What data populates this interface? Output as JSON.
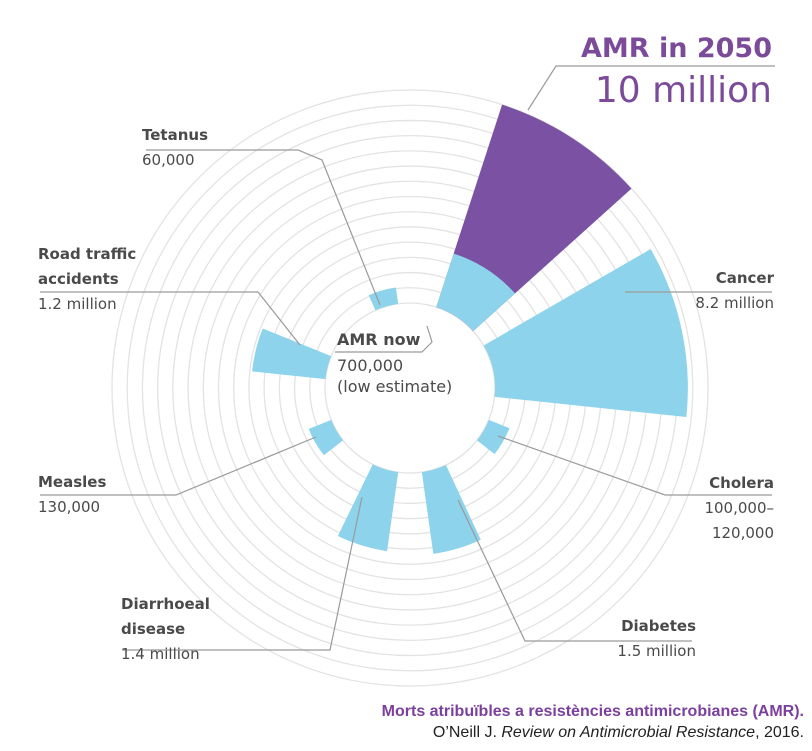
{
  "chart_data": {
    "type": "polar-bar",
    "title": "",
    "ring_count": 14,
    "highlight": {
      "label": "AMR in 2050",
      "value": "10 million",
      "value_num": 10000000,
      "color": "#7b52a3"
    },
    "current": {
      "label": "AMR now",
      "value": "700,000\n(low estimate)",
      "value_num": 700000
    },
    "categories": [
      {
        "name": "Tetanus",
        "value": "60,000",
        "value_num": 60000,
        "color": "#8dd3ec"
      },
      {
        "name": "Road traffic\naccidents",
        "value": "1.2 million",
        "value_num": 1200000,
        "color": "#8dd3ec"
      },
      {
        "name": "Measles",
        "value": "130,000",
        "value_num": 130000,
        "color": "#8dd3ec"
      },
      {
        "name": "Diarrhoeal\ndisease",
        "value": "1.4 million",
        "value_num": 1400000,
        "color": "#8dd3ec"
      },
      {
        "name": "Diabetes",
        "value": "1.5 million",
        "value_num": 1500000,
        "color": "#8dd3ec"
      },
      {
        "name": "Cholera",
        "value": "100,000–\n120,000",
        "value_num": 110000,
        "color": "#8dd3ec"
      },
      {
        "name": "Cancer",
        "value": "8.2 million",
        "value_num": 8200000,
        "color": "#8dd3ec"
      }
    ]
  },
  "caption": {
    "line1": "Morts atribuïbles a resistències antimicrobianes (AMR).",
    "line2_author": "O’Neill J. ",
    "line2_title": "Review on Antimicrobial Resistance",
    "line2_year": ",  2016."
  },
  "colors": {
    "purple": "#7b52a3",
    "blue": "#8dd3ec",
    "ring": "#e3e3e3",
    "leader": "#9a9a9a"
  }
}
